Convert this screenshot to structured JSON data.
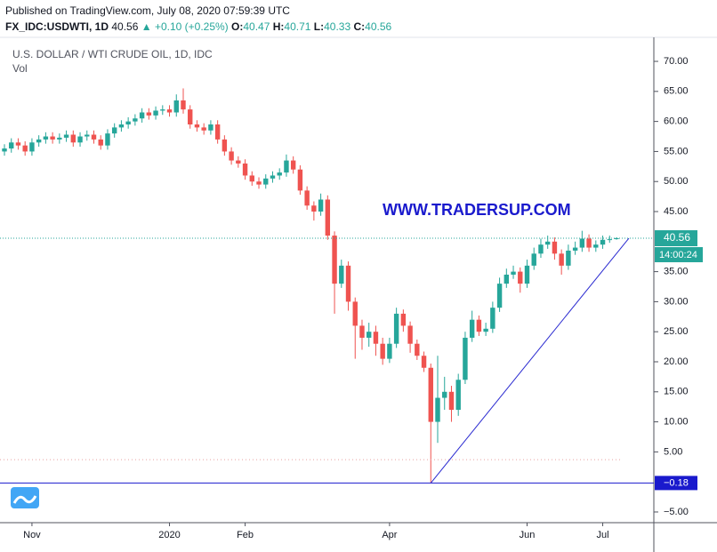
{
  "header": {
    "published": "Published on TradingView.com, July 08, 2020 07:59:39 UTC",
    "symbol": "FX_IDC:USDWTI, 1D",
    "change": "▲ +0.10 (+0.25%)",
    "o_label": "O:",
    "h_label": "H:",
    "l_label": "L:",
    "c_label": "C:"
  },
  "chart_data": {
    "type": "candlestick",
    "title": "U.S. DOLLAR / WTI CRUDE OIL, 1D, IDC",
    "subtitle": "Vol",
    "annotation": "WWW.TRADERSUP.COM",
    "countdown": "14:00:24",
    "categories": [
      null,
      null,
      null,
      null,
      "Nov",
      null,
      null,
      null,
      null,
      null,
      null,
      null,
      null,
      null,
      null,
      null,
      null,
      null,
      null,
      null,
      null,
      null,
      null,
      null,
      "2020",
      null,
      null,
      null,
      null,
      null,
      null,
      null,
      null,
      null,
      null,
      "Feb",
      null,
      null,
      null,
      null,
      null,
      null,
      null,
      null,
      null,
      null,
      null,
      null,
      null,
      null,
      null,
      null,
      null,
      null,
      null,
      null,
      "Apr",
      null,
      null,
      null,
      null,
      null,
      null,
      null,
      null,
      null,
      null,
      null,
      null,
      null,
      null,
      null,
      null,
      null,
      null,
      null,
      "Jun",
      null,
      null,
      null,
      null,
      null,
      null,
      null,
      null,
      null,
      null,
      "Jul",
      null,
      null
    ],
    "open": [
      55,
      55.5,
      56.5,
      56,
      55,
      56.5,
      57,
      57.5,
      57,
      57.3,
      57.8,
      56.5,
      57.5,
      57.8,
      57,
      56,
      58,
      59,
      59.5,
      60,
      60.5,
      61.5,
      61,
      61.8,
      62,
      61.5,
      63.5,
      62,
      59.5,
      59,
      58.5,
      59.5,
      57,
      55,
      53.5,
      53,
      51,
      50,
      49.5,
      50.5,
      51,
      51.5,
      53.5,
      52,
      48.5,
      46,
      45,
      47,
      41,
      33,
      36,
      30,
      26,
      24,
      25,
      23,
      20.5,
      23,
      28,
      26,
      23,
      21,
      19,
      10,
      14,
      15,
      12,
      17,
      24,
      27,
      25,
      25.5,
      29,
      33,
      34.5,
      35,
      33,
      36,
      38,
      39.5,
      40,
      38,
      36,
      38.5,
      39,
      40.5,
      39,
      39.5,
      40.3,
      40.47
    ],
    "high": [
      56.2,
      57.2,
      57.2,
      56.7,
      57.2,
      57.7,
      58.2,
      58.2,
      58,
      58.5,
      58.5,
      58.2,
      58.5,
      58.5,
      57.7,
      58.7,
      59.7,
      60.2,
      60.7,
      61.2,
      62.2,
      62.2,
      62.5,
      62.7,
      62.7,
      64.5,
      65.5,
      62.7,
      60.2,
      59.7,
      60.2,
      60.2,
      57.7,
      55.7,
      54.2,
      53.7,
      51.7,
      50.7,
      51.2,
      51.7,
      52.2,
      54.5,
      54.2,
      52.7,
      49.2,
      46.7,
      48,
      47.7,
      41.7,
      37,
      36.7,
      30.7,
      27,
      26.5,
      26,
      24,
      24,
      29,
      28.7,
      26.7,
      23.7,
      21.7,
      19.7,
      21,
      17.5,
      16,
      18,
      25,
      28.5,
      27.7,
      26.5,
      30,
      34,
      35.5,
      36,
      35.7,
      37,
      39,
      40.5,
      41,
      40.7,
      38.7,
      39.5,
      40,
      41.8,
      41.2,
      40.2,
      41,
      41,
      40.71
    ],
    "low": [
      54.3,
      54.8,
      55.3,
      54.3,
      54.3,
      55.8,
      56.3,
      56.3,
      56.3,
      56.6,
      55.8,
      55.8,
      56.8,
      56.3,
      55.3,
      55.3,
      57.3,
      58.3,
      58.8,
      59.3,
      59.8,
      60.3,
      60.3,
      61.1,
      60.8,
      60.8,
      61.3,
      58.8,
      58.3,
      57.8,
      57.8,
      56.3,
      54.3,
      52.8,
      52.3,
      50.3,
      49.3,
      48.8,
      48.8,
      49.8,
      50.3,
      50.8,
      51.3,
      47.8,
      45.3,
      43.5,
      44.3,
      40.3,
      28,
      32.3,
      28.5,
      20.5,
      22,
      22.5,
      21,
      19.5,
      19.8,
      22.3,
      25,
      21.5,
      20.3,
      18.3,
      -0.18,
      6.5,
      12,
      10,
      11,
      16.3,
      23.3,
      24.3,
      24.3,
      24.8,
      28.3,
      32.3,
      33.8,
      31.5,
      32.3,
      35.3,
      37.3,
      38.8,
      37,
      34.5,
      35.3,
      37.8,
      38.3,
      38.3,
      38.3,
      38.8,
      39.8,
      40.33
    ],
    "close": [
      55.5,
      56.5,
      56,
      55,
      56.5,
      57,
      57.5,
      57,
      57.3,
      57.8,
      56.5,
      57.5,
      57.8,
      57,
      56,
      58,
      59,
      59.5,
      60,
      60.5,
      61.5,
      61,
      61.8,
      62,
      61.5,
      63.5,
      62,
      59.5,
      59,
      58.5,
      59.5,
      57,
      55,
      53.5,
      53,
      51,
      50,
      49.5,
      50.5,
      51,
      51.5,
      53.5,
      52,
      48.5,
      46,
      45,
      47,
      41,
      33,
      36,
      30,
      26,
      24,
      25,
      23,
      20.5,
      23,
      28,
      26,
      23,
      21,
      19,
      10,
      14,
      15,
      12,
      17,
      24,
      27,
      25,
      25.5,
      29,
      33,
      34.5,
      35,
      33,
      36,
      38,
      39.5,
      40,
      38,
      36,
      38.5,
      39,
      40.5,
      39,
      39.5,
      40.3,
      40.4,
      40.56
    ],
    "up_color": "#26a69a",
    "down_color": "#ef5350",
    "ylim": [
      -6.78,
      74.0
    ],
    "yticks": [
      {
        "value": 70,
        "label": "70.00"
      },
      {
        "value": 65,
        "label": "65.00"
      },
      {
        "value": 60,
        "label": "60.00"
      },
      {
        "value": 55,
        "label": "55.00"
      },
      {
        "value": 50,
        "label": "50.00"
      },
      {
        "value": 45,
        "label": "45.00"
      },
      {
        "value": 35,
        "label": "35.00"
      },
      {
        "value": 30,
        "label": "30.00"
      },
      {
        "value": 25,
        "label": "25.00"
      },
      {
        "value": 20,
        "label": "20.00"
      },
      {
        "value": 15,
        "label": "15.00"
      },
      {
        "value": 10,
        "label": "10.00"
      },
      {
        "value": 5,
        "label": "5.00"
      },
      {
        "value": -5,
        "label": "−5.00"
      }
    ],
    "levels": [
      {
        "value": -0.18,
        "label": "−0.18",
        "color": "#1a1acd"
      },
      {
        "value": 3.7,
        "color": "#e8a0a0"
      }
    ],
    "trendline": {
      "x": [
        62,
        90.8
      ],
      "y": [
        -0.18,
        40.56
      ],
      "color": "#2a2ad0"
    }
  }
}
